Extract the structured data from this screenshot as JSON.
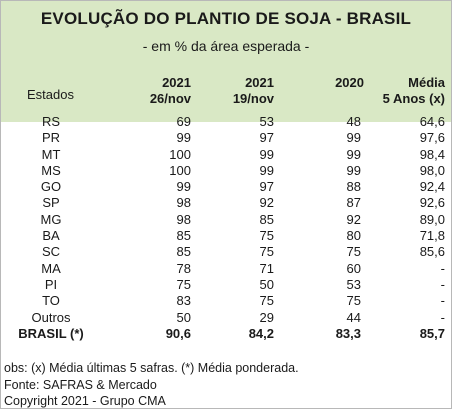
{
  "title": "EVOLUÇÃO DO PLANTIO DE SOJA - BRASIL",
  "subtitle": "- em % da área esperada -",
  "columns": {
    "estados": "Estados",
    "c1": [
      "2021",
      "26/nov"
    ],
    "c2": [
      "2021",
      "19/nov"
    ],
    "c3": [
      "2020"
    ],
    "c4": [
      "Média",
      "5 Anos (x)"
    ]
  },
  "rows": [
    {
      "estado": "RS",
      "v1": "69",
      "v2": "53",
      "v3": "48",
      "v4": "64,6"
    },
    {
      "estado": "PR",
      "v1": "99",
      "v2": "97",
      "v3": "99",
      "v4": "97,6"
    },
    {
      "estado": "MT",
      "v1": "100",
      "v2": "99",
      "v3": "99",
      "v4": "98,4"
    },
    {
      "estado": "MS",
      "v1": "100",
      "v2": "99",
      "v3": "99",
      "v4": "98,0"
    },
    {
      "estado": "GO",
      "v1": "99",
      "v2": "97",
      "v3": "88",
      "v4": "92,4"
    },
    {
      "estado": "SP",
      "v1": "98",
      "v2": "92",
      "v3": "87",
      "v4": "92,6"
    },
    {
      "estado": "MG",
      "v1": "98",
      "v2": "85",
      "v3": "92",
      "v4": "89,0"
    },
    {
      "estado": "BA",
      "v1": "85",
      "v2": "75",
      "v3": "80",
      "v4": "71,8"
    },
    {
      "estado": "SC",
      "v1": "85",
      "v2": "75",
      "v3": "75",
      "v4": "85,6"
    },
    {
      "estado": "MA",
      "v1": "78",
      "v2": "71",
      "v3": "60",
      "v4": "-"
    },
    {
      "estado": "PI",
      "v1": "75",
      "v2": "50",
      "v3": "53",
      "v4": "-"
    },
    {
      "estado": "TO",
      "v1": "83",
      "v2": "75",
      "v3": "75",
      "v4": "-"
    },
    {
      "estado": "Outros",
      "v1": "50",
      "v2": "29",
      "v3": "44",
      "v4": "-"
    }
  ],
  "total": {
    "estado": "BRASIL (*)",
    "v1": "90,6",
    "v2": "84,2",
    "v3": "83,3",
    "v4": "85,7"
  },
  "notes": [
    "obs: (x) Média últimas 5 safras. (*) Média ponderada.",
    "Fonte: SAFRAS & Mercado",
    "Copyright 2021 - Grupo CMA"
  ]
}
